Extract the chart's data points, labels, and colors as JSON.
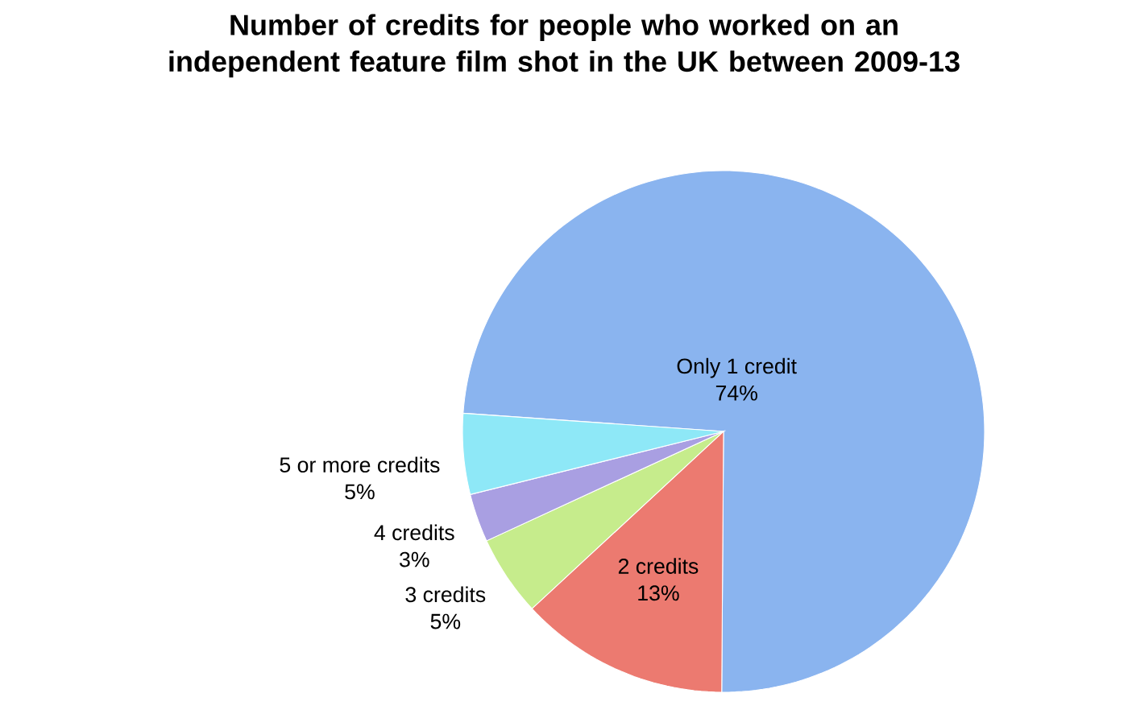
{
  "chart_data": {
    "type": "pie",
    "title": "Number of credits for people who worked on an independent feature film shot in the UK between 2009-13",
    "categories": [
      "Only 1 credit",
      "2 credits",
      "3 credits",
      "4 credits",
      "5 or more credits"
    ],
    "values": [
      74,
      13,
      5,
      3,
      5
    ],
    "colors": [
      "#8ab4ef",
      "#ec7a70",
      "#c6ec8c",
      "#a99fe2",
      "#8ee8f7"
    ],
    "value_labels": [
      "74%",
      "13%",
      "5%",
      "3%",
      "5%"
    ]
  }
}
